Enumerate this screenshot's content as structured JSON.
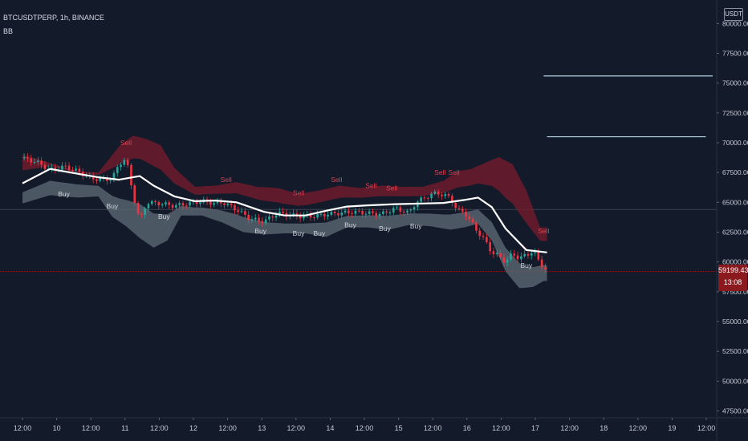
{
  "header": {
    "symbol_line": "BTCUSDTPERP, 1h, BINANCE",
    "indicator": "BB"
  },
  "price_axis": {
    "currency": "USDT",
    "current_price": "59199.43",
    "countdown": "13:08"
  },
  "colors": {
    "background": "#131a2a",
    "up_candle": "#26a69a",
    "down_candle": "#ef3340",
    "basis": "#ffffff",
    "upper_band": "#7a1c2c",
    "lower_band": "#5a6672",
    "sell_label": "#e04050",
    "buy_label": "#d0d4dc",
    "hline": "#b9d7ea",
    "price_line": "#8b1a1f"
  },
  "chart_data": {
    "type": "candlestick",
    "ylim": [
      47000,
      81500
    ],
    "y_ticks": [
      "47500.00",
      "50000.00",
      "52500.00",
      "55000.00",
      "57500.00",
      "60000.00",
      "62500.00",
      "65000.00",
      "67500.00",
      "70000.00",
      "72500.00",
      "75000.00",
      "77500.00",
      "80000.00"
    ],
    "x_ticks": [
      "12:00",
      "10",
      "12:00",
      "11",
      "12:00",
      "12",
      "12:00",
      "13",
      "12:00",
      "14",
      "12:00",
      "15",
      "12:00",
      "16",
      "12:00",
      "17",
      "12:00",
      "18",
      "12:00",
      "19",
      "12:00"
    ],
    "x_hour_range": [
      0,
      210
    ],
    "current_price": 59199.43,
    "basis_points": [
      [
        0,
        66600
      ],
      [
        8,
        67800
      ],
      [
        16,
        67400
      ],
      [
        22,
        67100
      ],
      [
        28,
        66900
      ],
      [
        34,
        67200
      ],
      [
        38,
        66400
      ],
      [
        44,
        65500
      ],
      [
        50,
        65100
      ],
      [
        56,
        65150
      ],
      [
        62,
        65000
      ],
      [
        70,
        64200
      ],
      [
        76,
        63900
      ],
      [
        82,
        63900
      ],
      [
        88,
        64300
      ],
      [
        94,
        64650
      ],
      [
        100,
        64750
      ],
      [
        108,
        64850
      ],
      [
        116,
        64900
      ],
      [
        122,
        64950
      ],
      [
        128,
        65200
      ],
      [
        132,
        65400
      ],
      [
        136,
        64600
      ],
      [
        140,
        62800
      ],
      [
        146,
        61000
      ],
      [
        152,
        60800
      ]
    ],
    "upper_points": [
      [
        0,
        69000
      ],
      [
        8,
        68300
      ],
      [
        16,
        67600
      ],
      [
        22,
        67500
      ],
      [
        28,
        69700
      ],
      [
        32,
        70600
      ],
      [
        36,
        70300
      ],
      [
        40,
        69800
      ],
      [
        44,
        67900
      ],
      [
        50,
        66300
      ],
      [
        56,
        66400
      ],
      [
        62,
        66700
      ],
      [
        68,
        66300
      ],
      [
        74,
        66200
      ],
      [
        80,
        65700
      ],
      [
        86,
        66000
      ],
      [
        92,
        66400
      ],
      [
        98,
        66200
      ],
      [
        104,
        66400
      ],
      [
        110,
        66300
      ],
      [
        116,
        66300
      ],
      [
        122,
        66800
      ],
      [
        126,
        67600
      ],
      [
        130,
        67800
      ],
      [
        134,
        68300
      ],
      [
        138,
        68800
      ],
      [
        142,
        68200
      ],
      [
        146,
        66000
      ],
      [
        150,
        62900
      ]
    ],
    "lower_points": [
      [
        0,
        64900
      ],
      [
        8,
        65600
      ],
      [
        16,
        65400
      ],
      [
        22,
        65500
      ],
      [
        26,
        63800
      ],
      [
        30,
        63000
      ],
      [
        34,
        62000
      ],
      [
        38,
        61200
      ],
      [
        42,
        61800
      ],
      [
        46,
        63900
      ],
      [
        52,
        63900
      ],
      [
        58,
        63300
      ],
      [
        64,
        62500
      ],
      [
        70,
        62300
      ],
      [
        76,
        62400
      ],
      [
        82,
        62400
      ],
      [
        88,
        62100
      ],
      [
        94,
        62900
      ],
      [
        100,
        62900
      ],
      [
        106,
        62700
      ],
      [
        112,
        63100
      ],
      [
        118,
        63000
      ],
      [
        124,
        62700
      ],
      [
        128,
        62900
      ],
      [
        132,
        63200
      ],
      [
        136,
        61800
      ],
      [
        140,
        59200
      ],
      [
        144,
        57800
      ],
      [
        148,
        57900
      ],
      [
        151,
        58400
      ]
    ],
    "close_points": [
      [
        0,
        68700
      ],
      [
        4,
        68400
      ],
      [
        8,
        67700
      ],
      [
        12,
        68000
      ],
      [
        16,
        67600
      ],
      [
        20,
        67000
      ],
      [
        24,
        66900
      ],
      [
        26,
        67000
      ],
      [
        28,
        68200
      ],
      [
        30,
        68700
      ],
      [
        32,
        65700
      ],
      [
        34,
        63400
      ],
      [
        36,
        65000
      ],
      [
        40,
        64900
      ],
      [
        44,
        64700
      ],
      [
        48,
        64900
      ],
      [
        52,
        65100
      ],
      [
        56,
        64900
      ],
      [
        58,
        65000
      ],
      [
        60,
        64700
      ],
      [
        62,
        64400
      ],
      [
        66,
        63600
      ],
      [
        70,
        63400
      ],
      [
        74,
        64100
      ],
      [
        78,
        63900
      ],
      [
        82,
        63800
      ],
      [
        86,
        63900
      ],
      [
        88,
        64000
      ],
      [
        92,
        64100
      ],
      [
        96,
        64200
      ],
      [
        100,
        64100
      ],
      [
        104,
        64000
      ],
      [
        108,
        64500
      ],
      [
        112,
        64100
      ],
      [
        114,
        65000
      ],
      [
        118,
        65600
      ],
      [
        120,
        65800
      ],
      [
        124,
        65400
      ],
      [
        126,
        64300
      ],
      [
        128,
        64200
      ],
      [
        132,
        62500
      ],
      [
        134,
        61800
      ],
      [
        136,
        60800
      ],
      [
        138,
        60500
      ],
      [
        140,
        60000
      ],
      [
        142,
        60700
      ],
      [
        144,
        60300
      ],
      [
        148,
        60900
      ],
      [
        150,
        59900
      ],
      [
        152,
        59200
      ]
    ],
    "horizontal_levels": [
      {
        "price": 75600,
        "from_hour": 151,
        "to_hour": 200
      },
      {
        "price": 70500,
        "from_hour": 152,
        "to_hour": 198
      }
    ],
    "signals": [
      {
        "type": "Sell",
        "hour": 30,
        "price": 69800
      },
      {
        "type": "Buy",
        "hour": 12,
        "price": 65500
      },
      {
        "type": "Buy",
        "hour": 26,
        "price": 64500
      },
      {
        "type": "Buy",
        "hour": 41,
        "price": 63600
      },
      {
        "type": "Sell",
        "hour": 59,
        "price": 66700
      },
      {
        "type": "Sell",
        "hour": 80,
        "price": 65600
      },
      {
        "type": "Buy",
        "hour": 69,
        "price": 62400
      },
      {
        "type": "Sell",
        "hour": 91,
        "price": 66700
      },
      {
        "type": "Buy",
        "hour": 80,
        "price": 62200
      },
      {
        "type": "Sell",
        "hour": 101,
        "price": 66200
      },
      {
        "type": "Buy",
        "hour": 86,
        "price": 62200
      },
      {
        "type": "Sell",
        "hour": 107,
        "price": 66000
      },
      {
        "type": "Buy",
        "hour": 95,
        "price": 62900
      },
      {
        "type": "Buy",
        "hour": 105,
        "price": 62600
      },
      {
        "type": "Sell",
        "hour": 121,
        "price": 67300
      },
      {
        "type": "Sell",
        "hour": 125,
        "price": 67300
      },
      {
        "type": "Buy",
        "hour": 114,
        "price": 62800
      },
      {
        "type": "Sell",
        "hour": 151,
        "price": 62400
      },
      {
        "type": "Buy",
        "hour": 146,
        "price": 59500
      }
    ]
  }
}
